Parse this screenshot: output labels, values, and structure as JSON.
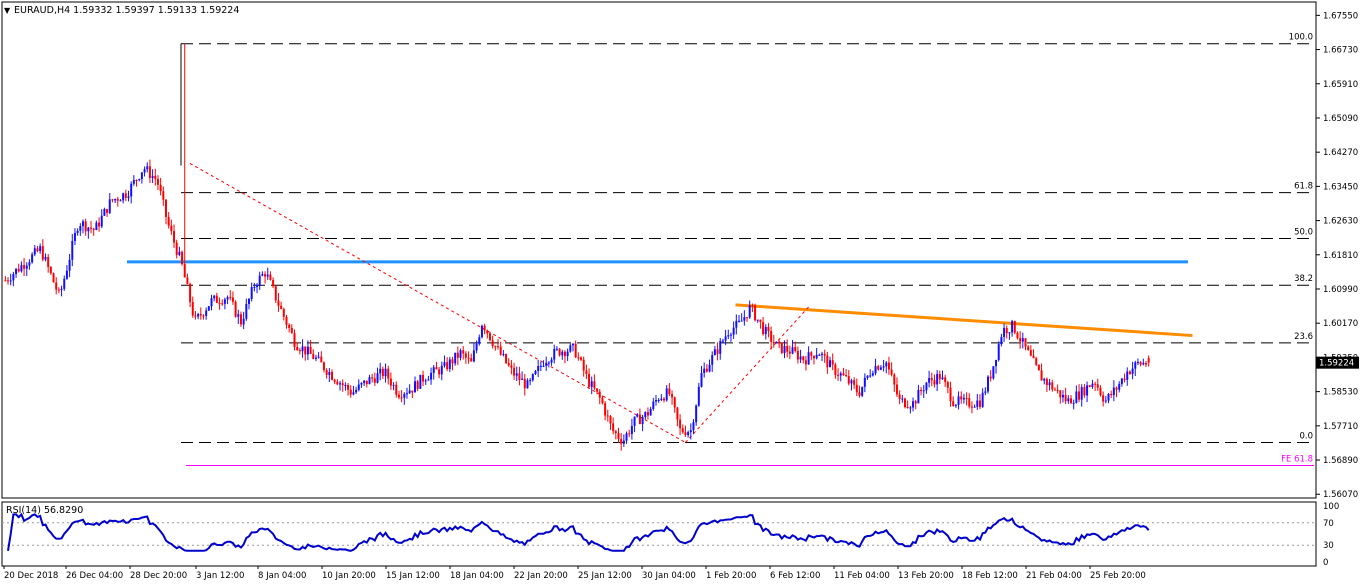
{
  "header": {
    "symbol_line": "EURAUD,H4  1.59332 1.59397 1.59133 1.59224",
    "rsi_label": "RSI(14) 56.8290"
  },
  "colors": {
    "bull": "#1010ff",
    "bear": "#ff0000",
    "blue_line": "#1e90ff",
    "orange_line": "#ff8c00",
    "fe_line": "#ff00ff",
    "rsi_line": "#0000cc",
    "price_tag_bg": "#000000"
  },
  "chart_data": [
    {
      "type": "candlestick",
      "title": "",
      "x_tick_labels": [
        "20 Dec 2018",
        "26 Dec 04:00",
        "28 Dec 20:00",
        "3 Jan 12:00",
        "8 Jan 04:00",
        "10 Jan 20:00",
        "15 Jan 12:00",
        "18 Jan 04:00",
        "22 Jan 20:00",
        "25 Jan 12:00",
        "30 Jan 04:00",
        "1 Feb 20:00",
        "6 Feb 12:00",
        "11 Feb 04:00",
        "13 Feb 20:00",
        "18 Feb 12:00",
        "21 Feb 04:00",
        "25 Feb 20:00"
      ],
      "y_tick_labels": [
        "1.67550",
        "1.66730",
        "1.65910",
        "1.65090",
        "1.64270",
        "1.63450",
        "1.62630",
        "1.61810",
        "1.60990",
        "1.60170",
        "1.59350",
        "1.58530",
        "1.57710",
        "1.56890",
        "1.56070"
      ],
      "ylim": [
        1.5598,
        1.6787
      ],
      "current_price": "1.59224",
      "anchors": [
        [
          0,
          1.612
        ],
        [
          6,
          1.6155
        ],
        [
          13,
          1.6195
        ],
        [
          20,
          1.608
        ],
        [
          27,
          1.626
        ],
        [
          33,
          1.624
        ],
        [
          39,
          1.631
        ],
        [
          45,
          1.633
        ],
        [
          51,
          1.639
        ],
        [
          56,
          1.636
        ],
        [
          60,
          1.6255
        ],
        [
          65,
          1.616
        ],
        [
          70,
          1.602
        ],
        [
          76,
          1.607
        ],
        [
          82,
          1.608
        ],
        [
          87,
          1.602
        ],
        [
          92,
          1.611
        ],
        [
          96,
          1.614
        ],
        [
          101,
          1.606
        ],
        [
          107,
          1.597
        ],
        [
          114,
          1.5935
        ],
        [
          121,
          1.589
        ],
        [
          128,
          1.585
        ],
        [
          134,
          1.588
        ],
        [
          140,
          1.59
        ],
        [
          145,
          1.585
        ],
        [
          150,
          1.586
        ],
        [
          155,
          1.589
        ],
        [
          162,
          1.591
        ],
        [
          168,
          1.5945
        ],
        [
          172,
          1.592
        ],
        [
          176,
          1.602
        ],
        [
          181,
          1.596
        ],
        [
          187,
          1.59
        ],
        [
          193,
          1.5865
        ],
        [
          199,
          1.593
        ],
        [
          204,
          1.595
        ],
        [
          210,
          1.5955
        ],
        [
          215,
          1.588
        ],
        [
          220,
          1.583
        ],
        [
          224,
          1.576
        ],
        [
          228,
          1.5735
        ],
        [
          232,
          1.578
        ],
        [
          237,
          1.58
        ],
        [
          241,
          1.584
        ],
        [
          245,
          1.585
        ],
        [
          249,
          1.576
        ],
        [
          253,
          1.576
        ],
        [
          257,
          1.5895
        ],
        [
          262,
          1.5945
        ],
        [
          267,
          1.6
        ],
        [
          271,
          1.6015
        ],
        [
          275,
          1.6055
        ],
        [
          280,
          1.6
        ],
        [
          285,
          1.596
        ],
        [
          290,
          1.595
        ],
        [
          295,
          1.593
        ],
        [
          300,
          1.595
        ],
        [
          305,
          1.591
        ],
        [
          310,
          1.5885
        ],
        [
          315,
          1.585
        ],
        [
          320,
          1.591
        ],
        [
          325,
          1.5925
        ],
        [
          330,
          1.583
        ],
        [
          335,
          1.5825
        ],
        [
          340,
          1.5875
        ],
        [
          345,
          1.589
        ],
        [
          350,
          1.583
        ],
        [
          355,
          1.5825
        ],
        [
          360,
          1.583
        ],
        [
          364,
          1.59
        ],
        [
          368,
          1.6
        ],
        [
          372,
          1.601
        ],
        [
          377,
          1.595
        ],
        [
          382,
          1.589
        ],
        [
          387,
          1.586
        ],
        [
          392,
          1.583
        ],
        [
          397,
          1.585
        ],
        [
          402,
          1.588
        ],
        [
          406,
          1.583
        ],
        [
          410,
          1.586
        ],
        [
          414,
          1.59
        ],
        [
          418,
          1.592
        ],
        [
          422,
          1.5922
        ]
      ]
    },
    {
      "type": "line",
      "title": "",
      "series_name": "RSI(14)",
      "y_tick_labels": [
        "100",
        "70",
        "30",
        "0"
      ],
      "ylim": [
        0,
        100
      ],
      "levels": [
        70,
        30
      ],
      "current_value": 56.829
    }
  ],
  "fibonacci": {
    "levels": [
      {
        "label": "100.0",
        "price": 1.6687
      },
      {
        "label": "61.8",
        "price": 1.633
      },
      {
        "label": "50.0",
        "price": 1.622
      },
      {
        "label": "38.2",
        "price": 1.6108
      },
      {
        "label": "23.6",
        "price": 1.597
      },
      {
        "label": "0.0",
        "price": 1.5731
      }
    ],
    "fe_label": "FE 61.8",
    "fe_price": 1.5676
  },
  "trendlines": {
    "blue_support_price": 1.6164,
    "orange_from": {
      "bar": 275,
      "price": 1.6061
    },
    "orange_to": {
      "bar": 428,
      "price": 1.5985
    },
    "dashed_down_from": {
      "bar": 53,
      "price": 1.64
    },
    "dashed_down_to": {
      "bar": 228,
      "price": 1.5731
    },
    "dashed_up_from": {
      "bar": 228,
      "price": 1.5731
    },
    "dashed_up_to": {
      "bar": 275,
      "price": 1.6061
    }
  }
}
